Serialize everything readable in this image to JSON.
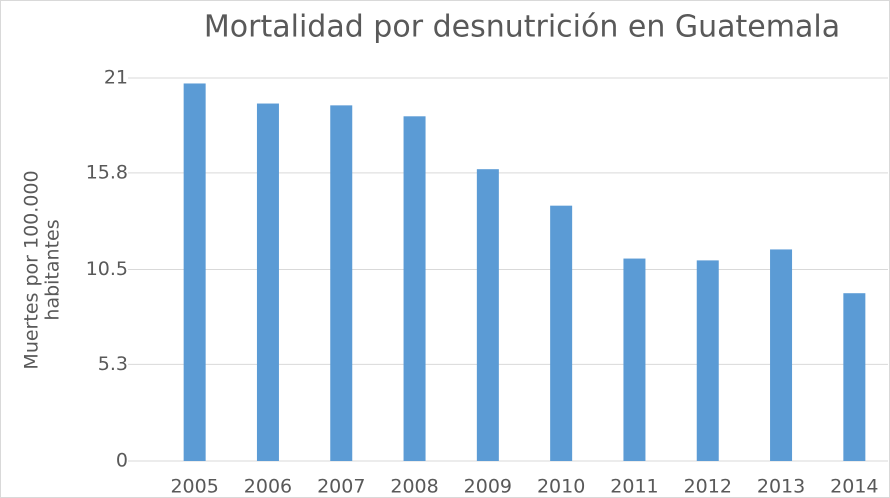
{
  "chart_data": {
    "type": "bar",
    "title": "Mortalidad por desnutrición en Guatemala",
    "y_label_lines": [
      "Muertes por 100.000",
      "habitantes"
    ],
    "categories": [
      "2005",
      "2006",
      "2007",
      "2008",
      "2009",
      "2010",
      "2011",
      "2012",
      "2013",
      "2014"
    ],
    "values": [
      20.7,
      19.6,
      19.5,
      18.9,
      16.0,
      14.0,
      11.1,
      11.0,
      11.6,
      9.2
    ],
    "color": "#5b9bd5",
    "ylim": [
      0,
      21
    ],
    "yticks": [
      0,
      5.3,
      10.5,
      15.8,
      21
    ],
    "grid": true
  }
}
